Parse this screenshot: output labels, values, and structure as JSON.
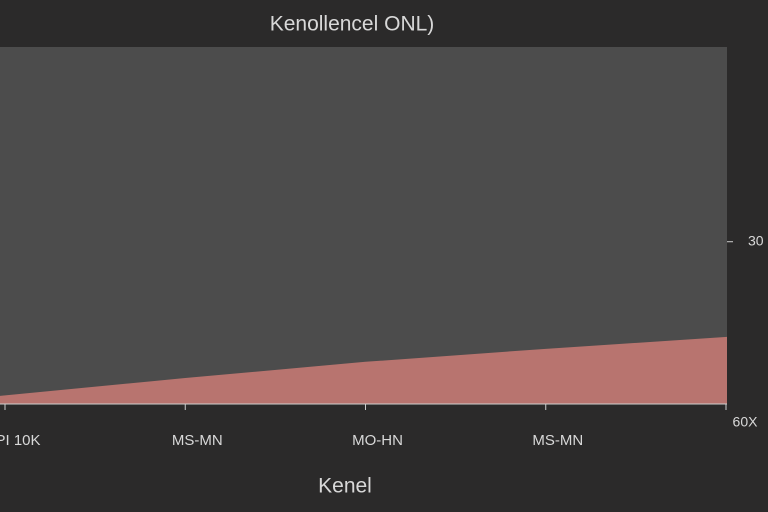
{
  "chart_data": {
    "type": "area",
    "title": "Kenollencel ONL)",
    "x_label": "Kenel",
    "categories": [
      "PI 10K",
      "MS-MN",
      "MO-HN",
      "MS-MN",
      null
    ],
    "values": [
      1.5,
      4.8,
      7.8,
      10.2,
      12.4
    ],
    "color": "#b8746f",
    "ylim": [
      0,
      66
    ],
    "yticks": [
      30
    ],
    "y_axis_side": "right",
    "annotations": [
      "60X"
    ],
    "grid": false
  }
}
